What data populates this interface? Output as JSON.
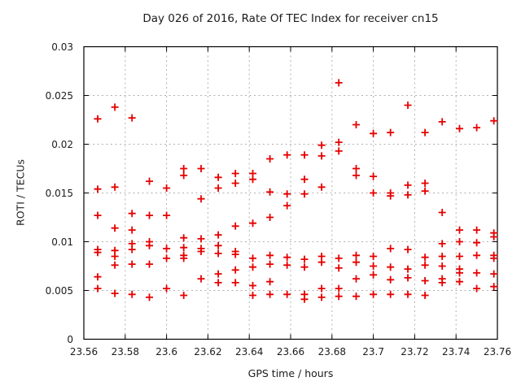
{
  "chart_data": {
    "type": "scatter",
    "title": "Day 026 of 2016, Rate Of TEC Index for receiver cn15",
    "xlabel": "GPS time / hours",
    "ylabel": "ROTI / TECUs",
    "xlim": [
      23.56,
      23.76
    ],
    "ylim": [
      0,
      0.03
    ],
    "x_ticks": [
      23.56,
      23.58,
      23.6,
      23.62,
      23.64,
      23.66,
      23.68,
      23.7,
      23.72,
      23.74,
      23.76
    ],
    "x_tick_labels": [
      "23.56",
      "23.58",
      "23.6",
      "23.62",
      "23.64",
      "23.66",
      "23.68",
      "23.7",
      "23.72",
      "23.74",
      "23.76"
    ],
    "y_ticks": [
      0,
      0.005,
      0.01,
      0.015,
      0.02,
      0.025,
      0.03
    ],
    "y_tick_labels": [
      "0",
      "0.005",
      "0.01",
      "0.015",
      "0.02",
      "0.025",
      "0.03"
    ],
    "grid": true,
    "legend": false,
    "marker": "plus",
    "marker_color": "#e60000",
    "grid_color": "#b0b0b0",
    "frame_color": "#000000",
    "points": [
      [
        23.5667,
        0.0226
      ],
      [
        23.5667,
        0.0154
      ],
      [
        23.5667,
        0.0127
      ],
      [
        23.5667,
        0.0092
      ],
      [
        23.5667,
        0.0089
      ],
      [
        23.5667,
        0.0064
      ],
      [
        23.5667,
        0.0052
      ],
      [
        23.575,
        0.0238
      ],
      [
        23.575,
        0.0156
      ],
      [
        23.575,
        0.0114
      ],
      [
        23.575,
        0.0091
      ],
      [
        23.575,
        0.0085
      ],
      [
        23.575,
        0.0076
      ],
      [
        23.575,
        0.0047
      ],
      [
        23.5833,
        0.0227
      ],
      [
        23.5833,
        0.0129
      ],
      [
        23.5833,
        0.0112
      ],
      [
        23.5833,
        0.0098
      ],
      [
        23.5833,
        0.0092
      ],
      [
        23.5833,
        0.0077
      ],
      [
        23.5833,
        0.0046
      ],
      [
        23.5917,
        0.0162
      ],
      [
        23.5917,
        0.0127
      ],
      [
        23.5917,
        0.01
      ],
      [
        23.5917,
        0.0096
      ],
      [
        23.5917,
        0.0077
      ],
      [
        23.5917,
        0.0043
      ],
      [
        23.6,
        0.0155
      ],
      [
        23.6,
        0.0127
      ],
      [
        23.6,
        0.0093
      ],
      [
        23.6,
        0.0083
      ],
      [
        23.6,
        0.0052
      ],
      [
        23.6083,
        0.0175
      ],
      [
        23.6083,
        0.0168
      ],
      [
        23.6083,
        0.0104
      ],
      [
        23.6083,
        0.0094
      ],
      [
        23.6083,
        0.0086
      ],
      [
        23.6083,
        0.0083
      ],
      [
        23.6083,
        0.0045
      ],
      [
        23.6167,
        0.0175
      ],
      [
        23.6167,
        0.0144
      ],
      [
        23.6167,
        0.0103
      ],
      [
        23.6167,
        0.0093
      ],
      [
        23.6167,
        0.009
      ],
      [
        23.6167,
        0.0062
      ],
      [
        23.625,
        0.0166
      ],
      [
        23.625,
        0.0155
      ],
      [
        23.625,
        0.0107
      ],
      [
        23.625,
        0.0096
      ],
      [
        23.625,
        0.0088
      ],
      [
        23.625,
        0.0067
      ],
      [
        23.625,
        0.0058
      ],
      [
        23.6333,
        0.017
      ],
      [
        23.6333,
        0.016
      ],
      [
        23.6333,
        0.0116
      ],
      [
        23.6333,
        0.009
      ],
      [
        23.6333,
        0.0087
      ],
      [
        23.6333,
        0.0071
      ],
      [
        23.6333,
        0.0058
      ],
      [
        23.6417,
        0.017
      ],
      [
        23.6417,
        0.0164
      ],
      [
        23.6417,
        0.0119
      ],
      [
        23.6417,
        0.0083
      ],
      [
        23.6417,
        0.0074
      ],
      [
        23.6417,
        0.0055
      ],
      [
        23.6417,
        0.0045
      ],
      [
        23.65,
        0.0185
      ],
      [
        23.65,
        0.0151
      ],
      [
        23.65,
        0.0125
      ],
      [
        23.65,
        0.0086
      ],
      [
        23.65,
        0.0077
      ],
      [
        23.65,
        0.0059
      ],
      [
        23.65,
        0.0046
      ],
      [
        23.6583,
        0.0189
      ],
      [
        23.6583,
        0.0149
      ],
      [
        23.6583,
        0.0137
      ],
      [
        23.6583,
        0.0084
      ],
      [
        23.6583,
        0.0076
      ],
      [
        23.6583,
        0.0046
      ],
      [
        23.6667,
        0.0189
      ],
      [
        23.6667,
        0.0164
      ],
      [
        23.6667,
        0.0149
      ],
      [
        23.6667,
        0.0082
      ],
      [
        23.6667,
        0.0074
      ],
      [
        23.6667,
        0.0046
      ],
      [
        23.6667,
        0.0041
      ],
      [
        23.675,
        0.0199
      ],
      [
        23.675,
        0.0188
      ],
      [
        23.675,
        0.0156
      ],
      [
        23.675,
        0.0085
      ],
      [
        23.675,
        0.0079
      ],
      [
        23.675,
        0.0052
      ],
      [
        23.675,
        0.0043
      ],
      [
        23.6833,
        0.0263
      ],
      [
        23.6833,
        0.0202
      ],
      [
        23.6833,
        0.0193
      ],
      [
        23.6833,
        0.0083
      ],
      [
        23.6833,
        0.0073
      ],
      [
        23.6833,
        0.0052
      ],
      [
        23.6833,
        0.0044
      ],
      [
        23.6917,
        0.022
      ],
      [
        23.6917,
        0.0175
      ],
      [
        23.6917,
        0.0168
      ],
      [
        23.6917,
        0.0086
      ],
      [
        23.6917,
        0.0079
      ],
      [
        23.6917,
        0.0062
      ],
      [
        23.6917,
        0.0044
      ],
      [
        23.7,
        0.0211
      ],
      [
        23.7,
        0.0167
      ],
      [
        23.7,
        0.015
      ],
      [
        23.7,
        0.0085
      ],
      [
        23.7,
        0.0075
      ],
      [
        23.7,
        0.0066
      ],
      [
        23.7,
        0.0046
      ],
      [
        23.7083,
        0.0212
      ],
      [
        23.7083,
        0.015
      ],
      [
        23.7083,
        0.0147
      ],
      [
        23.7083,
        0.0093
      ],
      [
        23.7083,
        0.0074
      ],
      [
        23.7083,
        0.0061
      ],
      [
        23.7083,
        0.0046
      ],
      [
        23.7167,
        0.024
      ],
      [
        23.7167,
        0.0158
      ],
      [
        23.7167,
        0.0148
      ],
      [
        23.7167,
        0.0092
      ],
      [
        23.7167,
        0.0072
      ],
      [
        23.7167,
        0.0063
      ],
      [
        23.7167,
        0.0046
      ],
      [
        23.725,
        0.0212
      ],
      [
        23.725,
        0.016
      ],
      [
        23.725,
        0.0152
      ],
      [
        23.725,
        0.0084
      ],
      [
        23.725,
        0.0076
      ],
      [
        23.725,
        0.006
      ],
      [
        23.725,
        0.0045
      ],
      [
        23.7333,
        0.0223
      ],
      [
        23.7333,
        0.013
      ],
      [
        23.7333,
        0.0098
      ],
      [
        23.7333,
        0.0085
      ],
      [
        23.7333,
        0.0075
      ],
      [
        23.7333,
        0.0062
      ],
      [
        23.7333,
        0.0058
      ],
      [
        23.7417,
        0.0216
      ],
      [
        23.7417,
        0.0112
      ],
      [
        23.7417,
        0.01
      ],
      [
        23.7417,
        0.0085
      ],
      [
        23.7417,
        0.0072
      ],
      [
        23.7417,
        0.0068
      ],
      [
        23.7417,
        0.0059
      ],
      [
        23.75,
        0.0217
      ],
      [
        23.75,
        0.0112
      ],
      [
        23.75,
        0.0099
      ],
      [
        23.75,
        0.0086
      ],
      [
        23.75,
        0.0068
      ],
      [
        23.75,
        0.0052
      ],
      [
        23.7583,
        0.0224
      ],
      [
        23.7583,
        0.0109
      ],
      [
        23.7583,
        0.0105
      ],
      [
        23.7583,
        0.0086
      ],
      [
        23.7583,
        0.0083
      ],
      [
        23.7583,
        0.0067
      ],
      [
        23.7583,
        0.0054
      ]
    ]
  }
}
